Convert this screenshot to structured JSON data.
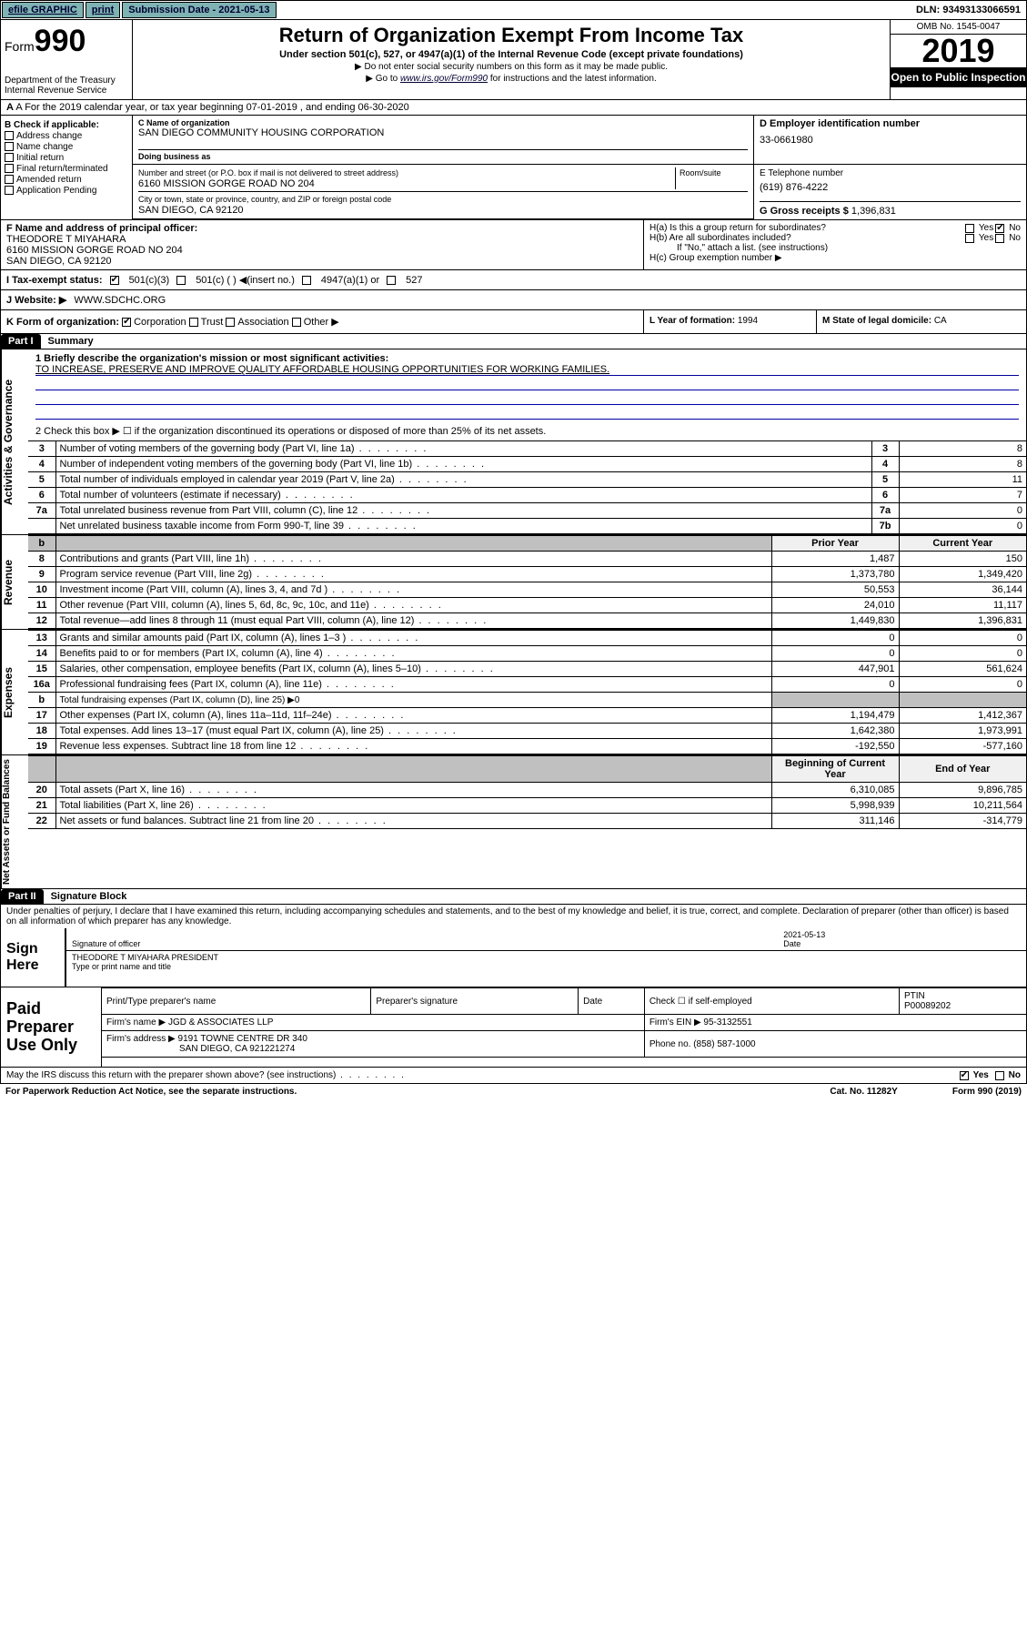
{
  "topbar": {
    "efile": "efile GRAPHIC",
    "print": "print",
    "submission": "Submission Date - 2021-05-13",
    "dln": "DLN: 93493133066591"
  },
  "header": {
    "form_prefix": "Form",
    "form_num": "990",
    "dept": "Department of the Treasury\nInternal Revenue Service",
    "title": "Return of Organization Exempt From Income Tax",
    "sub1": "Under section 501(c), 527, or 4947(a)(1) of the Internal Revenue Code (except private foundations)",
    "sub2a": "▶ Do not enter social security numbers on this form as it may be made public.",
    "sub2b_pre": "▶ Go to ",
    "sub2b_link": "www.irs.gov/Form990",
    "sub2b_post": " for instructions and the latest information.",
    "omb": "OMB No. 1545-0047",
    "year": "2019",
    "open": "Open to Public Inspection"
  },
  "row_a": "A For the 2019 calendar year, or tax year beginning 07-01-2019   , and ending 06-30-2020",
  "box_b": {
    "label": "B Check if applicable:",
    "items": [
      "Address change",
      "Name change",
      "Initial return",
      "Final return/terminated",
      "Amended return",
      "Application Pending"
    ]
  },
  "c": {
    "name_lbl": "C Name of organization",
    "name": "SAN DIEGO COMMUNITY HOUSING CORPORATION",
    "dba_lbl": "Doing business as",
    "addr_lbl": "Number and street (or P.O. box if mail is not delivered to street address)",
    "room_lbl": "Room/suite",
    "addr": "6160 MISSION GORGE ROAD NO 204",
    "city_lbl": "City or town, state or province, country, and ZIP or foreign postal code",
    "city": "SAN DIEGO, CA  92120"
  },
  "d": {
    "lbl": "D Employer identification number",
    "val": "33-0661980"
  },
  "e": {
    "lbl": "E Telephone number",
    "val": "(619) 876-4222"
  },
  "g": {
    "lbl": "G Gross receipts $",
    "val": "1,396,831"
  },
  "f": {
    "lbl": "F Name and address of principal officer:",
    "name": "THEODORE T MIYAHARA",
    "addr1": "6160 MISSION GORGE ROAD NO 204",
    "addr2": "SAN DIEGO, CA  92120"
  },
  "h": {
    "a": "H(a)  Is this a group return for subordinates?",
    "b": "H(b)  Are all subordinates included?",
    "b_note": "If \"No,\" attach a list. (see instructions)",
    "c": "H(c)  Group exemption number ▶"
  },
  "i": {
    "lbl": "I  Tax-exempt status:",
    "opt1": "501(c)(3)",
    "opt2": "501(c) (  ) ◀(insert no.)",
    "opt3": "4947(a)(1) or",
    "opt4": "527"
  },
  "j": {
    "lbl": "J  Website: ▶",
    "val": "WWW.SDCHC.ORG"
  },
  "k": {
    "lbl": "K Form of organization:",
    "c": "Corporation",
    "t": "Trust",
    "a": "Association",
    "o": "Other ▶"
  },
  "l": {
    "lbl": "L Year of formation:",
    "val": "1994"
  },
  "m": {
    "lbl": "M State of legal domicile:",
    "val": "CA"
  },
  "part1": {
    "label": "Part I",
    "title": "Summary"
  },
  "gov": {
    "side": "Activities & Governance",
    "l1_lbl": "1  Briefly describe the organization's mission or most significant activities:",
    "l1_val": "TO INCREASE, PRESERVE AND IMPROVE QUALITY AFFORDABLE HOUSING OPPORTUNITIES FOR WORKING FAMILIES.",
    "l2": "2   Check this box ▶ ☐  if the organization discontinued its operations or disposed of more than 25% of its net assets.",
    "rows": [
      {
        "n": "3",
        "d": "Number of voting members of the governing body (Part VI, line 1a)",
        "b": "3",
        "v": "8"
      },
      {
        "n": "4",
        "d": "Number of independent voting members of the governing body (Part VI, line 1b)",
        "b": "4",
        "v": "8"
      },
      {
        "n": "5",
        "d": "Total number of individuals employed in calendar year 2019 (Part V, line 2a)",
        "b": "5",
        "v": "11"
      },
      {
        "n": "6",
        "d": "Total number of volunteers (estimate if necessary)",
        "b": "6",
        "v": "7"
      },
      {
        "n": "7a",
        "d": "Total unrelated business revenue from Part VIII, column (C), line 12",
        "b": "7a",
        "v": "0"
      },
      {
        "n": "",
        "d": "Net unrelated business taxable income from Form 990-T, line 39",
        "b": "7b",
        "v": "0"
      }
    ]
  },
  "rev": {
    "side": "Revenue",
    "hdr_b": "b",
    "hdr_prior": "Prior Year",
    "hdr_cur": "Current Year",
    "rows": [
      {
        "n": "8",
        "d": "Contributions and grants (Part VIII, line 1h)",
        "p": "1,487",
        "c": "150"
      },
      {
        "n": "9",
        "d": "Program service revenue (Part VIII, line 2g)",
        "p": "1,373,780",
        "c": "1,349,420"
      },
      {
        "n": "10",
        "d": "Investment income (Part VIII, column (A), lines 3, 4, and 7d )",
        "p": "50,553",
        "c": "36,144"
      },
      {
        "n": "11",
        "d": "Other revenue (Part VIII, column (A), lines 5, 6d, 8c, 9c, 10c, and 11e)",
        "p": "24,010",
        "c": "11,117"
      },
      {
        "n": "12",
        "d": "Total revenue—add lines 8 through 11 (must equal Part VIII, column (A), line 12)",
        "p": "1,449,830",
        "c": "1,396,831"
      }
    ]
  },
  "exp": {
    "side": "Expenses",
    "rows": [
      {
        "n": "13",
        "d": "Grants and similar amounts paid (Part IX, column (A), lines 1–3 )",
        "p": "0",
        "c": "0"
      },
      {
        "n": "14",
        "d": "Benefits paid to or for members (Part IX, column (A), line 4)",
        "p": "0",
        "c": "0"
      },
      {
        "n": "15",
        "d": "Salaries, other compensation, employee benefits (Part IX, column (A), lines 5–10)",
        "p": "447,901",
        "c": "561,624"
      },
      {
        "n": "16a",
        "d": "Professional fundraising fees (Part IX, column (A), line 11e)",
        "p": "0",
        "c": "0"
      }
    ],
    "row_b": {
      "n": "b",
      "d": "Total fundraising expenses (Part IX, column (D), line 25) ▶0"
    },
    "rows2": [
      {
        "n": "17",
        "d": "Other expenses (Part IX, column (A), lines 11a–11d, 11f–24e)",
        "p": "1,194,479",
        "c": "1,412,367"
      },
      {
        "n": "18",
        "d": "Total expenses. Add lines 13–17 (must equal Part IX, column (A), line 25)",
        "p": "1,642,380",
        "c": "1,973,991"
      },
      {
        "n": "19",
        "d": "Revenue less expenses. Subtract line 18 from line 12",
        "p": "-192,550",
        "c": "-577,160"
      }
    ]
  },
  "net": {
    "side": "Net Assets or Fund Balances",
    "hdr_b": "Beginning of Current Year",
    "hdr_e": "End of Year",
    "rows": [
      {
        "n": "20",
        "d": "Total assets (Part X, line 16)",
        "p": "6,310,085",
        "c": "9,896,785"
      },
      {
        "n": "21",
        "d": "Total liabilities (Part X, line 26)",
        "p": "5,998,939",
        "c": "10,211,564"
      },
      {
        "n": "22",
        "d": "Net assets or fund balances. Subtract line 21 from line 20",
        "p": "311,146",
        "c": "-314,779"
      }
    ]
  },
  "part2": {
    "label": "Part II",
    "title": "Signature Block"
  },
  "perjury": "Under penalties of perjury, I declare that I have examined this return, including accompanying schedules and statements, and to the best of my knowledge and belief, it is true, correct, and complete. Declaration of preparer (other than officer) is based on all information of which preparer has any knowledge.",
  "sign": {
    "label": "Sign Here",
    "date": "2021-05-13",
    "sig_lbl": "Signature of officer",
    "date_lbl": "Date",
    "name": "THEODORE T MIYAHARA  PRESIDENT",
    "name_lbl": "Type or print name and title"
  },
  "paid": {
    "label": "Paid Preparer Use Only",
    "h1": "Print/Type preparer's name",
    "h2": "Preparer's signature",
    "h3": "Date",
    "h4": "Check ☐ if self-employed",
    "h5_lbl": "PTIN",
    "h5": "P00089202",
    "firm_lbl": "Firm's name    ▶",
    "firm": "JGD & ASSOCIATES LLP",
    "ein_lbl": "Firm's EIN ▶",
    "ein": "95-3132551",
    "addr_lbl": "Firm's address ▶",
    "addr1": "9191 TOWNE CENTRE DR 340",
    "addr2": "SAN DIEGO, CA  921221274",
    "phone_lbl": "Phone no.",
    "phone": "(858) 587-1000"
  },
  "discuss": "May the IRS discuss this return with the preparer shown above? (see instructions)",
  "footer": {
    "pra": "For Paperwork Reduction Act Notice, see the separate instructions.",
    "cat": "Cat. No. 11282Y",
    "form": "Form 990 (2019)"
  }
}
